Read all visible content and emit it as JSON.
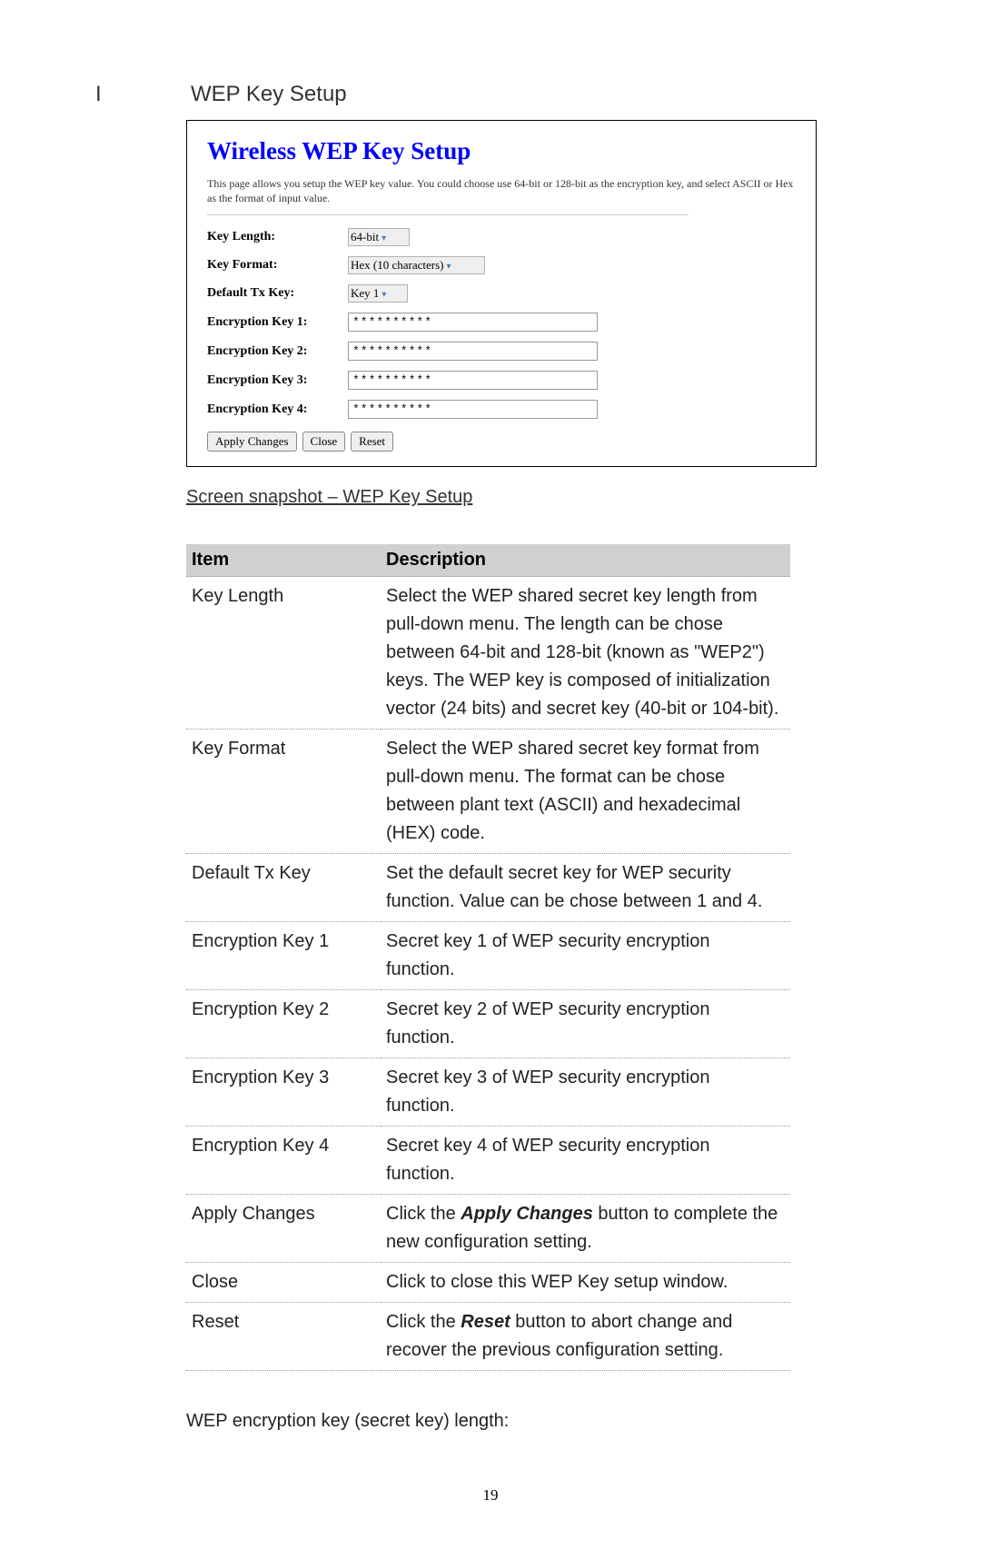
{
  "heading": {
    "roman": "I",
    "title": "WEP Key Setup"
  },
  "screenshot": {
    "title": "Wireless WEP Key Setup",
    "description": "This page allows you setup the WEP key value. You could choose use 64-bit or 128-bit as the encryption key, and select ASCII or Hex as the format of input value.",
    "rows": [
      {
        "label": "Key Length:",
        "type": "select",
        "value": "64-bit",
        "cls": "sel-length"
      },
      {
        "label": "Key Format:",
        "type": "select",
        "value": "Hex (10 characters)",
        "cls": "sel-format"
      },
      {
        "label": "Default Tx Key:",
        "type": "select",
        "value": "Key 1",
        "cls": "sel-txkey"
      },
      {
        "label": "Encryption Key 1:",
        "type": "input",
        "value": "**********"
      },
      {
        "label": "Encryption Key 2:",
        "type": "input",
        "value": "**********"
      },
      {
        "label": "Encryption Key 3:",
        "type": "input",
        "value": "**********"
      },
      {
        "label": "Encryption Key 4:",
        "type": "input",
        "value": "**********"
      }
    ],
    "buttons": [
      "Apply Changes",
      "Close",
      "Reset"
    ]
  },
  "caption": "Screen snapshot – WEP Key Setup",
  "table": {
    "columns": [
      "Item",
      "Description"
    ],
    "rows": [
      {
        "item": "Key Length",
        "desc": "Select the WEP shared secret key length from pull-down menu. The length can be chose between 64-bit and 128-bit (known as \"WEP2\") keys. The WEP key is composed of initialization vector (24 bits) and secret key (40-bit or 104-bit)."
      },
      {
        "item": "Key Format",
        "desc": "Select the WEP shared secret key format from pull-down menu. The format can be chose between plant text (ASCII) and hexadecimal (HEX) code."
      },
      {
        "item": "Default Tx Key",
        "desc": "Set the default secret key for WEP security function. Value can be chose between 1 and 4."
      },
      {
        "item": "Encryption Key 1",
        "desc": "Secret key 1 of WEP security encryption function."
      },
      {
        "item": "Encryption Key 2",
        "desc": "Secret key 2 of WEP security encryption function."
      },
      {
        "item": "Encryption Key 3",
        "desc": "Secret key 3 of WEP security encryption function."
      },
      {
        "item": "Encryption Key 4",
        "desc": "Secret key 4 of WEP security encryption function."
      },
      {
        "item": "Apply Changes",
        "desc_parts": [
          {
            "t": "Click the "
          },
          {
            "t": "Apply Changes",
            "style": "bold-italic"
          },
          {
            "t": " button to complete the new configuration setting."
          }
        ]
      },
      {
        "item": "Close",
        "desc": "Click to close this WEP Key setup window."
      },
      {
        "item": "Reset",
        "desc_parts": [
          {
            "t": "Click the "
          },
          {
            "t": "Reset",
            "style": "bold-italic"
          },
          {
            "t": " button to abort change and recover the previous configuration setting."
          }
        ]
      }
    ]
  },
  "footer_text": "WEP encryption key (secret key) length:",
  "page_number": "19"
}
